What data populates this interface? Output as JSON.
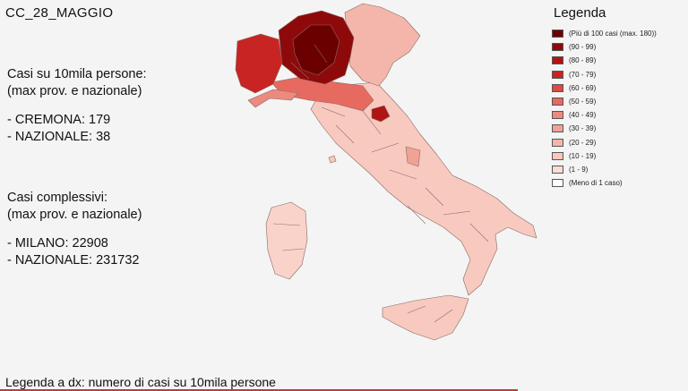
{
  "title": "CC_28_MAGGIO",
  "per10k": {
    "heading_line1": "Casi su 10mila persone:",
    "heading_line2": "(max prov. e nazionale)",
    "top_line": "- CREMONA: 179",
    "national_line": "- NAZIONALE: 38"
  },
  "totals": {
    "heading_line1": "Casi complessivi:",
    "heading_line2": "(max prov. e nazionale)",
    "top_line": "- MILANO: 22908",
    "national_line": "- NAZIONALE: 231732"
  },
  "footer": "Legenda a dx: numero di casi su 10mila persone",
  "legend": {
    "title": "Legenda",
    "items": [
      {
        "label": "(Più di 100 casi (max. 180))",
        "color": "#6b0000"
      },
      {
        "label": "(90 - 99)",
        "color": "#8e0a0a"
      },
      {
        "label": "(80 - 89)",
        "color": "#b01414"
      },
      {
        "label": "(70 - 79)",
        "color": "#c82424"
      },
      {
        "label": "(60 - 69)",
        "color": "#dc4a44"
      },
      {
        "label": "(50 - 59)",
        "color": "#e66a60"
      },
      {
        "label": "(40 - 49)",
        "color": "#ec8a7e"
      },
      {
        "label": "(30 - 39)",
        "color": "#f0a294"
      },
      {
        "label": "(20 - 29)",
        "color": "#f4b6aa"
      },
      {
        "label": "(10 - 19)",
        "color": "#f8c8be"
      },
      {
        "label": "(1 - 9)",
        "color": "#fbdcd4"
      },
      {
        "label": "(Meno di 1 caso)",
        "color": "#ffffff"
      }
    ]
  }
}
